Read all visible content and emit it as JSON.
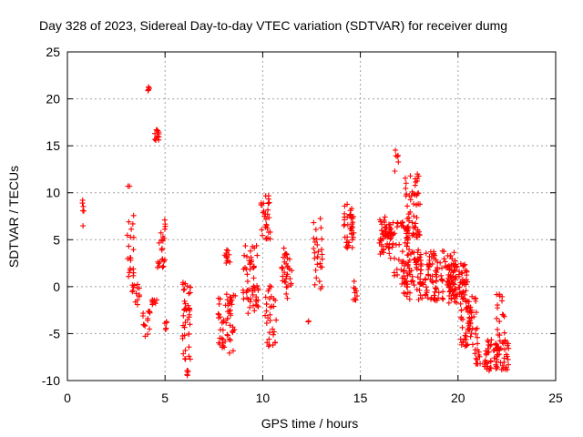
{
  "chart_data": {
    "type": "scatter",
    "title": "Day 328 of 2023, Sidereal Day-to-day VTEC variation (SDTVAR) for receiver dumg",
    "xlabel": "GPS time / hours",
    "ylabel": "SDTVAR / TECUs",
    "xlim": [
      0,
      25
    ],
    "ylim": [
      -10,
      25
    ],
    "xticks": [
      "0",
      "5",
      "10",
      "15",
      "20",
      "25"
    ],
    "yticks": [
      "-10",
      "-5",
      "0",
      "5",
      "10",
      "15",
      "20",
      "25"
    ],
    "grid": true,
    "marker": "+",
    "color": "#ff0000",
    "clusters": [
      {
        "x": [
          0.75,
          0.85
        ],
        "y": [
          5.3,
          9.7
        ],
        "n": 6
      },
      {
        "x": [
          3.05,
          3.4
        ],
        "y": [
          1.0,
          10.8
        ],
        "n": 22
      },
      {
        "x": [
          3.3,
          3.7
        ],
        "y": [
          -2.0,
          0.5
        ],
        "n": 14
      },
      {
        "x": [
          3.85,
          4.3
        ],
        "y": [
          -5.3,
          -2.5
        ],
        "n": 14
      },
      {
        "x": [
          4.1,
          4.2
        ],
        "y": [
          20.8,
          21.3
        ],
        "n": 5
      },
      {
        "x": [
          4.3,
          4.6
        ],
        "y": [
          -2.2,
          -1.3
        ],
        "n": 8
      },
      {
        "x": [
          4.45,
          4.7
        ],
        "y": [
          15.5,
          16.7
        ],
        "n": 12
      },
      {
        "x": [
          4.6,
          5.05
        ],
        "y": [
          2.0,
          7.2
        ],
        "n": 24
      },
      {
        "x": [
          4.95,
          5.1
        ],
        "y": [
          -4.8,
          -3.2
        ],
        "n": 5
      },
      {
        "x": [
          5.9,
          6.3
        ],
        "y": [
          -7.8,
          0.5
        ],
        "n": 40
      },
      {
        "x": [
          6.05,
          6.2
        ],
        "y": [
          -9.5,
          -8.8
        ],
        "n": 5
      },
      {
        "x": [
          7.7,
          8.6
        ],
        "y": [
          -7.2,
          -0.5
        ],
        "n": 55
      },
      {
        "x": [
          8.05,
          8.45
        ],
        "y": [
          2.3,
          4.0
        ],
        "n": 12
      },
      {
        "x": [
          8.95,
          9.8
        ],
        "y": [
          -3.0,
          4.5
        ],
        "n": 55
      },
      {
        "x": [
          9.9,
          10.4
        ],
        "y": [
          5.0,
          9.7
        ],
        "n": 30
      },
      {
        "x": [
          10.1,
          10.7
        ],
        "y": [
          -6.4,
          0.2
        ],
        "n": 32
      },
      {
        "x": [
          10.95,
          11.5
        ],
        "y": [
          -1.3,
          4.7
        ],
        "n": 32
      },
      {
        "x": [
          12.3,
          12.4
        ],
        "y": [
          -3.8,
          -3.6
        ],
        "n": 2
      },
      {
        "x": [
          12.6,
          13.15
        ],
        "y": [
          -0.5,
          7.5
        ],
        "n": 28
      },
      {
        "x": [
          14.15,
          14.7
        ],
        "y": [
          4.0,
          9.0
        ],
        "n": 40
      },
      {
        "x": [
          14.6,
          14.85
        ],
        "y": [
          -1.5,
          2.5
        ],
        "n": 10
      },
      {
        "x": [
          15.95,
          16.7
        ],
        "y": [
          3.0,
          7.5
        ],
        "n": 60
      },
      {
        "x": [
          16.7,
          17.5
        ],
        "y": [
          0.0,
          7.0
        ],
        "n": 45
      },
      {
        "x": [
          16.75,
          16.95
        ],
        "y": [
          12.0,
          14.8
        ],
        "n": 6
      },
      {
        "x": [
          17.3,
          18.05
        ],
        "y": [
          5.0,
          12.0
        ],
        "n": 55
      },
      {
        "x": [
          17.2,
          19.9
        ],
        "y": [
          -1.5,
          4.0
        ],
        "n": 170
      },
      {
        "x": [
          19.5,
          20.5
        ],
        "y": [
          -2.0,
          2.5
        ],
        "n": 80
      },
      {
        "x": [
          20.1,
          21.0
        ],
        "y": [
          -6.5,
          -1.0
        ],
        "n": 60
      },
      {
        "x": [
          20.8,
          21.15
        ],
        "y": [
          -8.3,
          -6.5
        ],
        "n": 12
      },
      {
        "x": [
          21.35,
          22.6
        ],
        "y": [
          -9.0,
          -5.5
        ],
        "n": 75
      },
      {
        "x": [
          21.95,
          22.45
        ],
        "y": [
          -5.2,
          -0.8
        ],
        "n": 16
      }
    ]
  }
}
